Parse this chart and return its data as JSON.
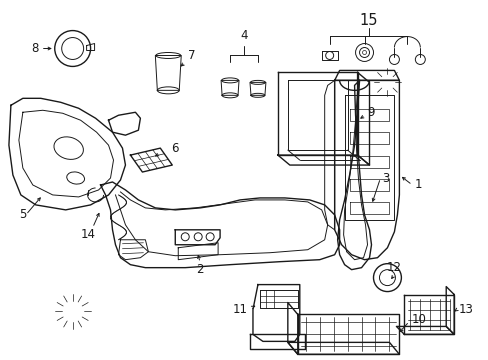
{
  "background_color": "#ffffff",
  "line_color": "#1a1a1a",
  "fig_width": 4.89,
  "fig_height": 3.6,
  "dpi": 100,
  "font_size": 8.5
}
